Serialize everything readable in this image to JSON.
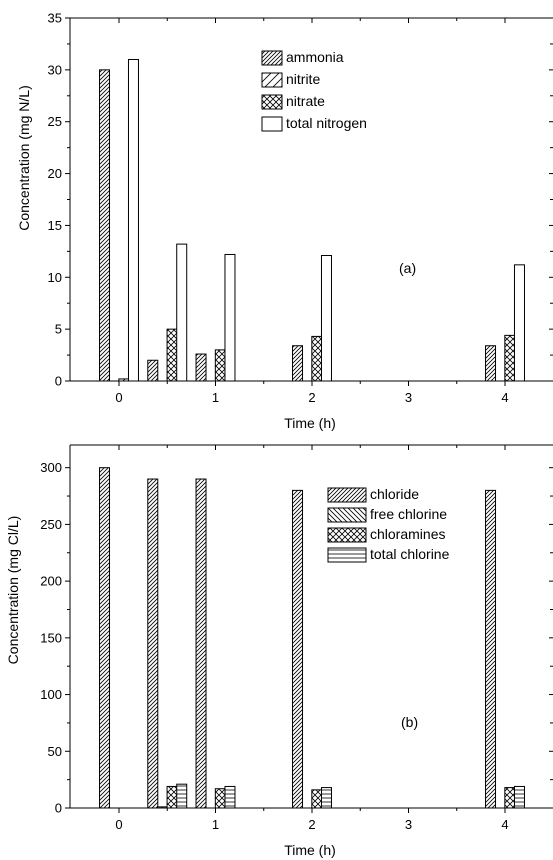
{
  "chart_data": [
    {
      "type": "bar",
      "panel_label": "(a)",
      "xlabel": "Time (h)",
      "ylabel": "Concentration (mg N/L)",
      "ylim": [
        0,
        35
      ],
      "yticks": [
        0,
        5,
        10,
        15,
        20,
        25,
        30,
        35
      ],
      "xlim": [
        -0.5,
        4.5
      ],
      "xticks": [
        0,
        1,
        2,
        3,
        4
      ],
      "legend_position": "top-right",
      "series": [
        {
          "name": "ammonia",
          "pattern": "diag-dense",
          "x": [
            -0.15,
            0.35,
            0.85,
            1.85,
            3.85
          ],
          "values": [
            30,
            2,
            2.6,
            3.4,
            3.4
          ]
        },
        {
          "name": "nitrite",
          "pattern": "diag-sparse",
          "x": [
            0.05
          ],
          "values": [
            0.2
          ]
        },
        {
          "name": "nitrate",
          "pattern": "crosshatch",
          "x": [
            0.55,
            1.05,
            2.05,
            4.05
          ],
          "values": [
            5,
            3,
            4.3,
            4.4
          ]
        },
        {
          "name": "total nitrogen",
          "pattern": "none",
          "x": [
            0.15,
            0.65,
            1.15,
            2.15,
            4.15
          ],
          "values": [
            31,
            13.2,
            12.2,
            12.1,
            11.2
          ]
        }
      ]
    },
    {
      "type": "bar",
      "panel_label": "(b)",
      "xlabel": "Time (h)",
      "ylabel": "Concentration (mg Cl/L)",
      "ylim": [
        0,
        320
      ],
      "yticks": [
        0,
        50,
        100,
        150,
        200,
        250,
        300
      ],
      "xlim": [
        -0.5,
        4.5
      ],
      "xticks": [
        0,
        1,
        2,
        3,
        4
      ],
      "legend_position": "top-right",
      "series": [
        {
          "name": "chloride",
          "pattern": "diag-dense",
          "x": [
            -0.15,
            0.35,
            0.85,
            1.85,
            3.85
          ],
          "values": [
            300,
            290,
            290,
            280,
            280
          ]
        },
        {
          "name": "free chlorine",
          "pattern": "back-diag",
          "x": [
            0.45
          ],
          "values": [
            1
          ]
        },
        {
          "name": "chloramines",
          "pattern": "crosshatch",
          "x": [
            0.55,
            1.05,
            2.05,
            4.05
          ],
          "values": [
            19,
            17,
            16,
            18
          ]
        },
        {
          "name": "total chlorine",
          "pattern": "horizontal",
          "x": [
            0.65,
            1.15,
            2.15,
            4.15
          ],
          "values": [
            21,
            19,
            18,
            19
          ]
        }
      ]
    }
  ]
}
